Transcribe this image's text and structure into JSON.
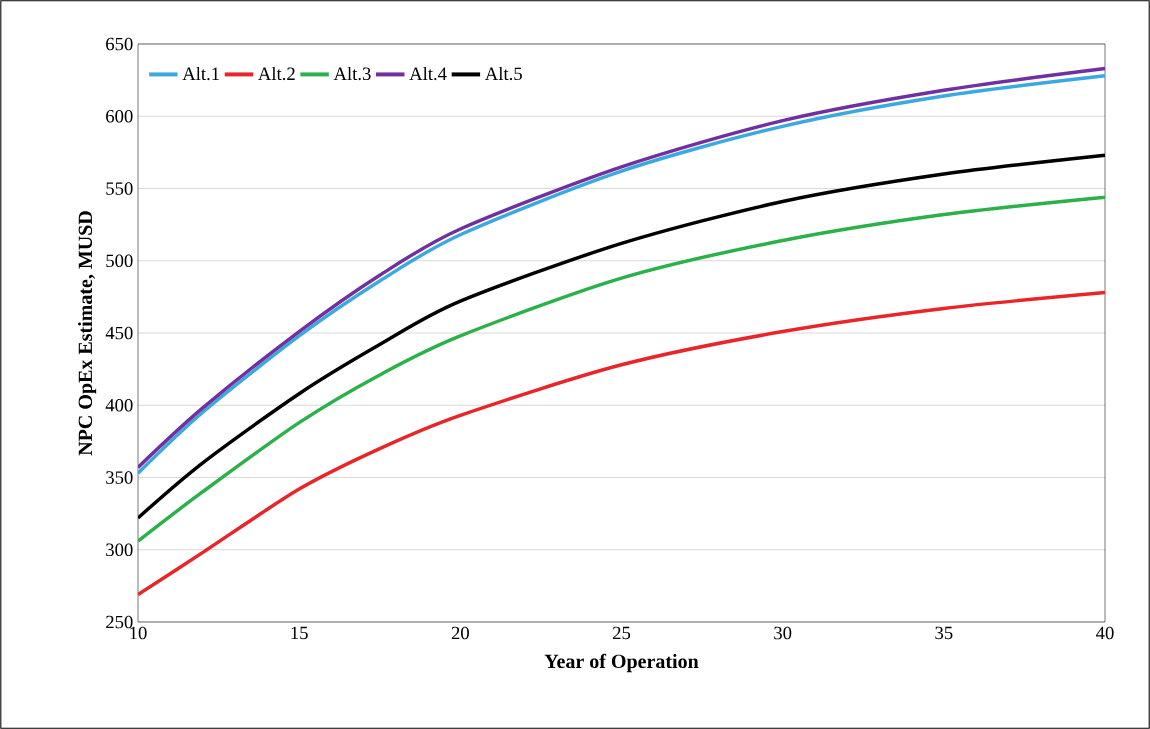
{
  "chart_data": {
    "type": "line",
    "xlabel": "Year of Operation",
    "ylabel": "NPC OpEx Estimate, MUSD",
    "x": [
      10,
      12,
      15,
      17.5,
      20,
      25,
      30,
      35,
      40
    ],
    "series": [
      {
        "name": "Alt.1",
        "color": "#3ba9e0",
        "values": [
          353,
          395,
          448,
          486,
          518,
          562,
          593,
          614,
          628
        ]
      },
      {
        "name": "Alt.2",
        "color": "#e8262a",
        "values": [
          269,
          298,
          342,
          370,
          393,
          428,
          451,
          467,
          478
        ]
      },
      {
        "name": "Alt.3",
        "color": "#2bb04a",
        "values": [
          306,
          340,
          388,
          421,
          448,
          488,
          514,
          532,
          544
        ]
      },
      {
        "name": "Alt.4",
        "color": "#7030a0",
        "values": [
          357,
          398,
          451,
          490,
          522,
          565,
          597,
          618,
          633
        ]
      },
      {
        "name": "Alt.5",
        "color": "#000000",
        "values": [
          322,
          360,
          408,
          442,
          472,
          512,
          541,
          560,
          573
        ]
      }
    ],
    "xlim": [
      10,
      40
    ],
    "xticks": [
      10,
      15,
      20,
      25,
      30,
      35,
      40
    ],
    "ylim": [
      250,
      650
    ],
    "yticks": [
      250,
      300,
      350,
      400,
      450,
      500,
      550,
      600,
      650
    ],
    "grid": "y",
    "legend": "top left"
  }
}
